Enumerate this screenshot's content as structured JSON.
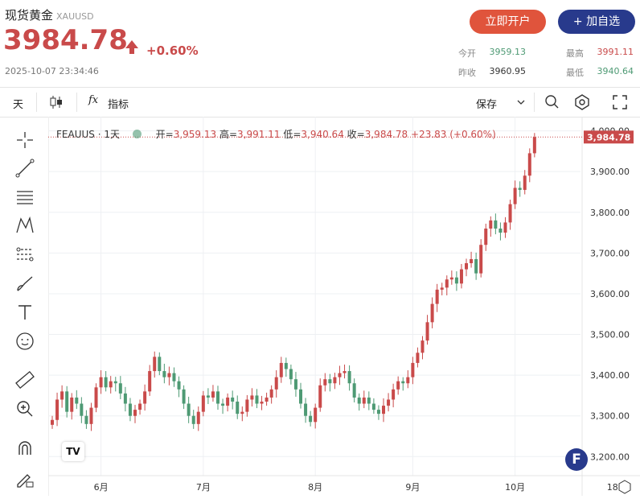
{
  "header": {
    "title": "现货黄金",
    "symbol": "XAUUSD",
    "price": "3984.78",
    "change": "+0.60%",
    "timestamp": "2025-10-07 23:34:46",
    "open_button": "立即开户",
    "add_button": "+ 加自选",
    "stats": {
      "open_label": "今开",
      "open_value": "3959.13",
      "high_label": "最高",
      "high_value": "3991.11",
      "prev_label": "昨收",
      "prev_value": "3960.95",
      "low_label": "最低",
      "low_value": "3940.64"
    },
    "colors": {
      "up": "#c94a4a",
      "down": "#4e9a74",
      "brand_blue": "#283a8c",
      "brand_orange": "#e0543c"
    }
  },
  "toolbar": {
    "interval": "天",
    "indicator_label": "指标",
    "save_label": "保存"
  },
  "left_tools": [
    "crosshair-icon",
    "trendline-icon",
    "fib-icon",
    "pattern-icon",
    "projection-icon",
    "brush-icon",
    "text-icon",
    "emoji-icon",
    "ruler-icon",
    "zoom-icon",
    "magnet-icon",
    "lock-draw-icon"
  ],
  "legend": {
    "name": "FEAUUS · 1天",
    "open_label": "开",
    "open": "3,959.13",
    "high_label": "高",
    "high": "3,991.11",
    "low_label": "低",
    "low": "3,940.64",
    "close_label": "收",
    "close": "3,984.78",
    "change": "+23.83 (+0.60%)"
  },
  "badge": "F",
  "tv_logo": "TV",
  "chart_data": {
    "type": "candlestick",
    "y_ticks": [
      "3,200.00",
      "3,300.00",
      "3,400.00",
      "3,500.00",
      "3,600.00",
      "3,700.00",
      "3,800.00",
      "3,900.00",
      "4,000.00"
    ],
    "x_ticks": [
      "6月",
      "7月",
      "8月",
      "9月",
      "10月",
      "18"
    ],
    "ylim": [
      3165,
      4015
    ],
    "last_price_label": "3,984.78",
    "grid": true,
    "closes": [
      3290,
      3340,
      3360,
      3310,
      3345,
      3330,
      3300,
      3280,
      3320,
      3370,
      3395,
      3370,
      3385,
      3380,
      3355,
      3330,
      3300,
      3315,
      3330,
      3360,
      3410,
      3445,
      3410,
      3395,
      3405,
      3385,
      3365,
      3330,
      3300,
      3280,
      3310,
      3350,
      3345,
      3360,
      3330,
      3325,
      3345,
      3335,
      3305,
      3310,
      3340,
      3350,
      3330,
      3335,
      3345,
      3365,
      3395,
      3430,
      3415,
      3390,
      3365,
      3330,
      3300,
      3285,
      3320,
      3375,
      3390,
      3380,
      3395,
      3405,
      3410,
      3380,
      3345,
      3330,
      3345,
      3330,
      3315,
      3305,
      3325,
      3340,
      3365,
      3385,
      3380,
      3395,
      3430,
      3455,
      3485,
      3530,
      3575,
      3610,
      3615,
      3635,
      3640,
      3625,
      3660,
      3675,
      3685,
      3650,
      3720,
      3760,
      3780,
      3760,
      3750,
      3775,
      3820,
      3860,
      3855,
      3890,
      3945,
      3984.78
    ],
    "label_every": 20,
    "x_tick_index": [
      10,
      31,
      54,
      74,
      95,
      115
    ]
  }
}
